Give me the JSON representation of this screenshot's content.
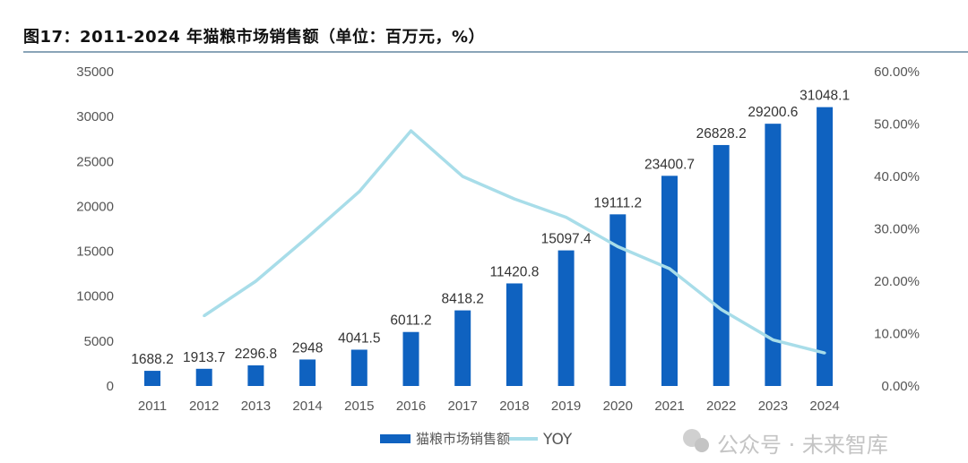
{
  "title": "图17：2011-2024 年猫粮市场销售额（单位：百万元，%）",
  "watermark": "公众号 · 未来智库",
  "colors": {
    "bar": "#0f62c0",
    "line": "#a8dde9",
    "title_rule": "#8aa4b8"
  },
  "chart_data": {
    "type": "bar+line",
    "title": "图17：2011-2024 年猫粮市场销售额（单位：百万元，%）",
    "categories": [
      "2011",
      "2012",
      "2013",
      "2014",
      "2015",
      "2016",
      "2017",
      "2018",
      "2019",
      "2020",
      "2021",
      "2022",
      "2023",
      "2024"
    ],
    "series": [
      {
        "name": "猫粮市场销售额",
        "type": "bar",
        "axis": "left",
        "values": [
          1688.2,
          1913.7,
          2296.8,
          2948,
          4041.5,
          6011.2,
          8418.2,
          11420.8,
          15097.4,
          19111.2,
          23400.7,
          26828.2,
          29200.6,
          31048.1
        ],
        "labels": [
          "1688.2",
          "1913.7",
          "2296.8",
          "2948",
          "4041.5",
          "6011.2",
          "8418.2",
          "11420.8",
          "15097.4",
          "19111.2",
          "23400.7",
          "26828.2",
          "29200.6",
          "31048.1"
        ]
      },
      {
        "name": "YOY",
        "type": "line",
        "axis": "right",
        "values": [
          null,
          13.4,
          20.0,
          28.4,
          37.1,
          48.7,
          40.0,
          35.7,
          32.2,
          26.6,
          22.4,
          14.6,
          8.8,
          6.3
        ]
      }
    ],
    "y_left": {
      "range": [
        0,
        35000
      ],
      "ticks": [
        "0",
        "5000",
        "10000",
        "15000",
        "20000",
        "25000",
        "30000",
        "35000"
      ]
    },
    "y_right": {
      "range": [
        0,
        60
      ],
      "unit": "%",
      "ticks": [
        "0.00%",
        "10.00%",
        "20.00%",
        "30.00%",
        "40.00%",
        "50.00%",
        "60.00%"
      ]
    },
    "grid": false,
    "legend": "bottom"
  }
}
